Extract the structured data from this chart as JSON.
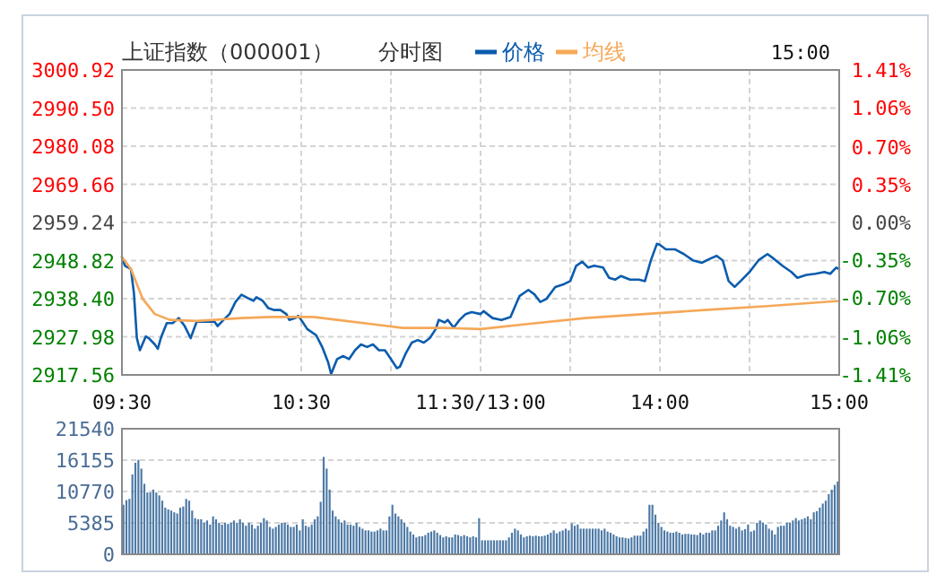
{
  "chart_data": [
    {
      "type": "line",
      "title": "上证指数（000001）",
      "subtitle": "分时图",
      "annotations": [
        "15:00"
      ],
      "legend": "top",
      "grid": true,
      "categories": [
        "09:30",
        null,
        null,
        null,
        null,
        null,
        null,
        null,
        null,
        null,
        null,
        null,
        null,
        null,
        null,
        null,
        null,
        null,
        null,
        null,
        null,
        null,
        null,
        null,
        null,
        null,
        null,
        null,
        null,
        null,
        null,
        null,
        null,
        null,
        null,
        null,
        null,
        null,
        null,
        null,
        null,
        null,
        null,
        null,
        null,
        null,
        null,
        null,
        null,
        null,
        null,
        null,
        null,
        null,
        null,
        null,
        null,
        null,
        null,
        null,
        "10:30",
        null,
        null,
        null,
        null,
        null,
        null,
        null,
        null,
        null,
        null,
        null,
        null,
        null,
        null,
        null,
        null,
        null,
        null,
        null,
        null,
        null,
        null,
        null,
        null,
        null,
        null,
        null,
        null,
        null,
        null,
        null,
        null,
        null,
        null,
        null,
        null,
        null,
        null,
        null,
        null,
        null,
        null,
        null,
        null,
        null,
        null,
        null,
        null,
        null,
        null,
        null,
        null,
        null,
        null,
        null,
        null,
        null,
        null,
        null,
        "11:30/13:00",
        null,
        null,
        null,
        null,
        null,
        null,
        null,
        null,
        null,
        null,
        null,
        null,
        null,
        null,
        null,
        null,
        null,
        null,
        null,
        null,
        null,
        null,
        null,
        null,
        null,
        null,
        null,
        null,
        null,
        null,
        null,
        null,
        null,
        null,
        null,
        null,
        null,
        null,
        null,
        null,
        null,
        null,
        null,
        null,
        null,
        null,
        null,
        null,
        null,
        null,
        null,
        null,
        null,
        null,
        null,
        null,
        null,
        null,
        null,
        "14:00",
        null,
        null,
        null,
        null,
        null,
        null,
        null,
        null,
        null,
        null,
        null,
        null,
        null,
        null,
        null,
        null,
        null,
        null,
        null,
        null,
        null,
        null,
        null,
        null,
        null,
        null,
        null,
        null,
        null,
        null,
        null,
        null,
        null,
        null,
        null,
        null,
        null,
        null,
        null,
        null,
        null,
        null,
        null,
        null,
        null,
        null,
        null,
        null,
        null,
        null,
        null,
        null,
        null,
        null,
        null,
        null,
        null,
        null,
        null,
        "15:00"
      ],
      "ylim": [
        2917.56,
        3000.92
      ],
      "yticks": [
        {
          "value": 2917.56,
          "label": "2917.56"
        },
        {
          "value": 2927.98,
          "label": "2927.98"
        },
        {
          "value": 2938.4,
          "label": "2938.40"
        },
        {
          "value": 2948.82,
          "label": "2948.82"
        },
        {
          "value": 2959.24,
          "label": "2959.24"
        },
        {
          "value": 2969.66,
          "label": "2969.66"
        },
        {
          "value": 2980.08,
          "label": "2980.08"
        },
        {
          "value": 2990.5,
          "label": "2990.50"
        },
        {
          "value": 3000.92,
          "label": "3000.92"
        }
      ],
      "y2lim": [
        -1.41,
        1.41
      ],
      "y2ticks": [
        {
          "value": -1.41,
          "label": "-1.41%"
        },
        {
          "value": -1.06,
          "label": "-1.06%"
        },
        {
          "value": -0.7,
          "label": "-0.70%"
        },
        {
          "value": -0.35,
          "label": "-0.35%"
        },
        {
          "value": 0,
          "label": "0.00%"
        },
        {
          "value": 0.35,
          "label": "0.35%"
        },
        {
          "value": 0.7,
          "label": "0.70%"
        },
        {
          "value": 1.06,
          "label": "1.06%"
        },
        {
          "value": 1.41,
          "label": "1.41%"
        }
      ],
      "series": [
        {
          "name": "价格",
          "type": "line",
          "color": "#0b5cad",
          "values": [
            2949.8,
            2947.4,
            null,
            2946.5,
            2940.0,
            2927.6,
            2924.3,
            null,
            2928.1,
            2927.6,
            null,
            2925.9,
            2924.7,
            2927.6,
            null,
            2931.7,
            null,
            2931.7,
            null,
            2933.1,
            null,
            2930.9,
            null,
            2927.6,
            null,
            2932.1,
            null,
            null,
            2932.1,
            null,
            null,
            2932.1,
            2930.9,
            null,
            2932.6,
            null,
            2934.2,
            null,
            2937.5,
            null,
            2939.5,
            null,
            2938.6,
            null,
            2937.8,
            2938.8,
            null,
            2937.9,
            null,
            2935.8,
            null,
            2935.3,
            null,
            2935.3,
            null,
            2934.2,
            2932.6,
            null,
            2933.1,
            2933.7,
            2932.6,
            null,
            2930.1,
            null,
            null,
            2928.4,
            null,
            2925.2,
            null,
            2921.0,
            2917.8,
            null,
            2921.9,
            null,
            2922.7,
            null,
            2921.9,
            null,
            2924.3,
            null,
            2925.9,
            null,
            2925.2,
            null,
            2925.9,
            null,
            2924.3,
            null,
            2924.3,
            null,
            2921.9,
            null,
            2919.4,
            2919.8,
            null,
            2923.5,
            null,
            2926.4,
            null,
            2927.1,
            null,
            2926.4,
            null,
            2927.6,
            null,
            2930.1,
            2932.6,
            null,
            2931.9,
            2932.6,
            null,
            2930.5,
            null,
            2932.6,
            null,
            2934.2,
            null,
            2934.7,
            null,
            null,
            2934.2,
            2935.0,
            null,
            null,
            2933.1,
            null,
            null,
            2932.6,
            null,
            null,
            2933.4,
            null,
            null,
            2939.1,
            null,
            null,
            2940.8,
            null,
            2939.6,
            null,
            2937.5,
            null,
            2938.3,
            null,
            null,
            2941.6,
            null,
            null,
            2942.4,
            null,
            2943.2,
            null,
            2947.4,
            null,
            2948.5,
            null,
            2946.9,
            null,
            2947.4,
            null,
            null,
            2946.9,
            null,
            2944.1,
            null,
            2943.6,
            null,
            2944.6,
            null,
            null,
            2943.6,
            null,
            null,
            2943.6,
            null,
            2943.2,
            null,
            2948.9,
            null,
            2953.4,
            2953.1,
            null,
            2951.9,
            null,
            null,
            2951.9,
            null,
            null,
            2950.6,
            null,
            null,
            2948.9,
            null,
            null,
            2948.2,
            null,
            null,
            2949.4,
            null,
            2950.1,
            null,
            2948.9,
            null,
            2943.2,
            null,
            2941.6,
            null,
            2943.2,
            null,
            null,
            2945.7,
            null,
            null,
            2948.9,
            null,
            null,
            2950.6,
            null,
            2949.4,
            null,
            null,
            2947.4,
            null,
            null,
            2945.7,
            null,
            2944.1,
            null,
            null,
            2944.9,
            null,
            null,
            2945.2,
            null,
            null,
            2945.7,
            null,
            2945.2,
            null,
            2946.9,
            2946.5
          ]
        },
        {
          "name": "均线",
          "type": "line",
          "color": "#f5a858",
          "values": [
            2949.8,
            null,
            null,
            2946.5,
            null,
            null,
            null,
            2938.3,
            null,
            null,
            null,
            2934.2,
            null,
            null,
            null,
            null,
            2932.6,
            null,
            null,
            null,
            null,
            null,
            null,
            null,
            null,
            2932.3,
            null,
            null,
            null,
            null,
            null,
            null,
            null,
            null,
            null,
            null,
            null,
            null,
            null,
            null,
            2933.1,
            null,
            null,
            null,
            null,
            null,
            null,
            null,
            null,
            null,
            2933.4,
            null,
            null,
            null,
            null,
            null,
            null,
            null,
            null,
            null,
            null,
            null,
            null,
            null,
            2933.4,
            null,
            null,
            null,
            null,
            null,
            null,
            null,
            2932.6,
            null,
            null,
            null,
            null,
            null,
            null,
            null,
            null,
            null,
            null,
            null,
            2931.4,
            null,
            null,
            null,
            null,
            null,
            null,
            null,
            null,
            null,
            2930.4,
            null,
            null,
            null,
            null,
            null,
            null,
            null,
            null,
            null,
            null,
            null,
            null,
            null,
            2930.4,
            null,
            null,
            null,
            null,
            null,
            null,
            null,
            null,
            null,
            null,
            null,
            2930.1,
            null,
            null,
            null,
            null,
            null,
            null,
            null,
            null,
            null,
            null,
            null,
            null,
            null,
            null,
            2931.4,
            null,
            null,
            null,
            null,
            null,
            null,
            null,
            null,
            null,
            null,
            null,
            null,
            null,
            null,
            null,
            null,
            null,
            null,
            null,
            2933.1,
            null,
            null,
            null,
            null,
            null,
            null,
            null,
            null,
            null,
            null,
            null,
            null,
            null,
            null,
            null,
            null,
            null,
            null,
            null,
            2934.2,
            null,
            null,
            null,
            null,
            null,
            null,
            null,
            null,
            null,
            null,
            null,
            null,
            null,
            null,
            null,
            null,
            null,
            null,
            null,
            2935.3,
            null,
            null,
            null,
            null,
            null,
            null,
            null,
            null,
            null,
            null,
            null,
            null,
            null,
            null,
            null,
            null,
            null,
            null,
            null,
            2936.3,
            null,
            null,
            null,
            null,
            null,
            null,
            null,
            null,
            null,
            null,
            null,
            null,
            null,
            null,
            null,
            null,
            null,
            null,
            null,
            null,
            null,
            null,
            null,
            null,
            2937.8
          ]
        }
      ]
    },
    {
      "type": "bar",
      "color": "#4d79a6",
      "grid": "y",
      "tick_labels": "y",
      "categories": [
        null,
        null,
        null,
        null,
        null,
        null,
        null,
        null,
        null,
        null,
        null,
        null,
        null,
        null,
        null,
        null,
        null,
        null,
        null,
        null,
        null,
        null,
        null,
        null,
        null,
        null,
        null,
        null,
        null,
        null,
        null,
        null,
        null,
        null,
        null,
        null,
        null,
        null,
        null,
        null,
        null,
        null,
        null,
        null,
        null,
        null,
        null,
        null,
        null,
        null,
        null,
        null,
        null,
        null,
        null,
        null,
        null,
        null,
        null,
        null,
        null,
        null,
        null,
        null,
        null,
        null,
        null,
        null,
        null,
        null,
        null,
        null,
        null,
        null,
        null,
        null,
        null,
        null,
        null,
        null,
        null,
        null,
        null,
        null,
        null,
        null,
        null,
        null,
        null,
        null,
        null,
        null,
        null,
        null,
        null,
        null,
        null,
        null,
        null,
        null,
        null,
        null,
        null,
        null,
        null,
        null,
        null,
        null,
        null,
        null,
        null,
        null,
        null,
        null,
        null,
        null,
        null,
        null,
        null,
        null,
        null,
        null,
        null,
        null,
        null,
        null,
        null,
        null,
        null,
        null,
        null,
        null,
        null,
        null,
        null,
        null,
        null,
        null,
        null,
        null,
        null,
        null,
        null,
        null,
        null,
        null,
        null,
        null,
        null,
        null,
        null,
        null,
        null,
        null,
        null,
        null,
        null,
        null,
        null,
        null,
        null,
        null,
        null,
        null,
        null,
        null,
        null,
        null,
        null,
        null,
        null,
        null,
        null,
        null,
        null,
        null,
        null,
        null,
        null,
        null,
        null,
        null,
        null,
        null,
        null,
        null,
        null,
        null,
        null,
        null,
        null,
        null,
        null,
        null,
        null,
        null,
        null,
        null,
        null,
        null,
        null,
        null,
        null,
        null,
        null,
        null,
        null,
        null,
        null,
        null,
        null,
        null,
        null,
        null,
        null,
        null,
        null,
        null,
        null,
        null,
        null,
        null,
        null,
        null,
        null,
        null,
        null,
        null,
        null,
        null,
        null,
        null,
        null,
        null,
        null,
        null,
        null,
        null,
        null,
        null
      ],
      "ylim": [
        0,
        21540
      ],
      "yticks": [
        0,
        5385,
        10770,
        16155,
        21540
      ],
      "values": [
        8500,
        9300,
        9500,
        13700,
        15700,
        16200,
        14700,
        12100,
        10600,
        10600,
        11100,
        10600,
        10100,
        9200,
        8000,
        7700,
        7500,
        7200,
        7000,
        8000,
        8200,
        9500,
        9200,
        7500,
        6200,
        6000,
        6000,
        5400,
        5800,
        5100,
        6500,
        6000,
        5400,
        5100,
        5400,
        5200,
        5400,
        5800,
        5400,
        6000,
        5400,
        4900,
        5400,
        5100,
        4400,
        4900,
        5400,
        6200,
        5800,
        4700,
        4400,
        4700,
        5100,
        5400,
        5400,
        5100,
        4700,
        4700,
        5100,
        4100,
        6000,
        4900,
        4700,
        5100,
        6000,
        6500,
        9000,
        16700,
        14700,
        11100,
        7500,
        6500,
        6000,
        5400,
        5800,
        5100,
        5100,
        4900,
        5400,
        4700,
        4400,
        4100,
        4100,
        3900,
        3900,
        4100,
        4400,
        4100,
        4100,
        6500,
        8500,
        7000,
        6500,
        6000,
        5400,
        4700,
        3900,
        3400,
        2900,
        3100,
        3100,
        3300,
        3700,
        3900,
        4100,
        3700,
        3300,
        2900,
        3100,
        2900,
        2900,
        3400,
        3300,
        3100,
        3300,
        3100,
        2900,
        3100,
        2900,
        6200,
        2400,
        2400,
        2400,
        2400,
        2400,
        2400,
        2400,
        2400,
        2400,
        2900,
        3700,
        4400,
        4100,
        3400,
        2900,
        3100,
        3200,
        3100,
        3200,
        3100,
        3100,
        3200,
        3400,
        3700,
        4100,
        3600,
        3900,
        4100,
        4400,
        4100,
        5300,
        4900,
        5100,
        4400,
        4400,
        4400,
        4400,
        4400,
        4400,
        4400,
        4100,
        4400,
        3900,
        3700,
        3400,
        3100,
        2900,
        2900,
        2800,
        2700,
        2900,
        3200,
        3200,
        3200,
        3900,
        4400,
        8500,
        8500,
        6800,
        5400,
        4700,
        4100,
        3900,
        3700,
        3700,
        3900,
        3700,
        3400,
        3500,
        3500,
        3400,
        3400,
        3300,
        3700,
        3400,
        3700,
        3700,
        4100,
        4100,
        4900,
        5800,
        7200,
        6000,
        4900,
        4700,
        4400,
        4700,
        4100,
        4300,
        5100,
        3900,
        4100,
        5400,
        5800,
        5400,
        5100,
        4400,
        4100,
        3400,
        4700,
        4900,
        4900,
        5400,
        5400,
        5800,
        6200,
        5800,
        6000,
        6200,
        6500,
        6000,
        7200,
        7400,
        8000,
        8700,
        9200,
        10300,
        11100,
        11900,
        12500
      ]
    }
  ]
}
